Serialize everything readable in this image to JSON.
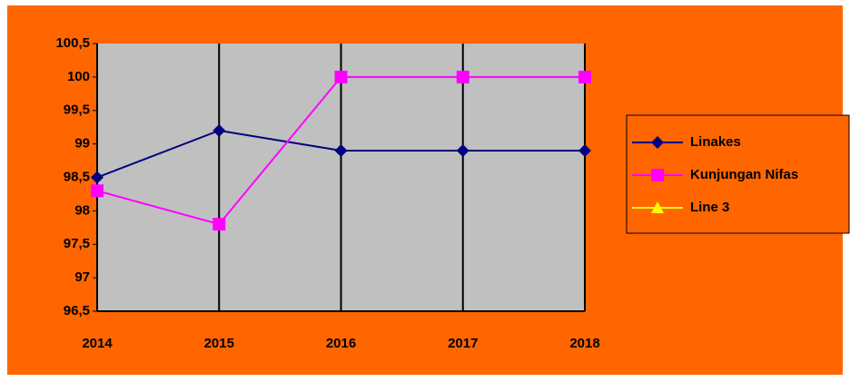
{
  "chart_data": {
    "type": "line",
    "categories": [
      "2014",
      "2015",
      "2016",
      "2017",
      "2018"
    ],
    "series": [
      {
        "name": "Linakes",
        "color": "#000080",
        "marker": "diamond",
        "values": [
          98.5,
          99.2,
          98.9,
          98.9,
          98.9
        ]
      },
      {
        "name": "Kunjungan Nifas",
        "color": "#FF00FF",
        "marker": "square",
        "values": [
          98.3,
          97.8,
          100,
          100,
          100
        ]
      },
      {
        "name": "Line 3",
        "color": "#FFFF00",
        "marker": "triangle",
        "values": [
          null,
          null,
          null,
          null,
          null
        ]
      }
    ],
    "ylim": [
      96.5,
      100.5
    ],
    "yticks": [
      {
        "value": 96.5,
        "label": "96,5"
      },
      97,
      {
        "value": 97.5,
        "label": "97,5"
      },
      98,
      {
        "value": 98.5,
        "label": "98,5"
      },
      99,
      {
        "value": 99.5,
        "label": "99,5"
      },
      100,
      {
        "value": 100.5,
        "label": "100,5"
      }
    ],
    "grid": false,
    "legend": "right"
  }
}
